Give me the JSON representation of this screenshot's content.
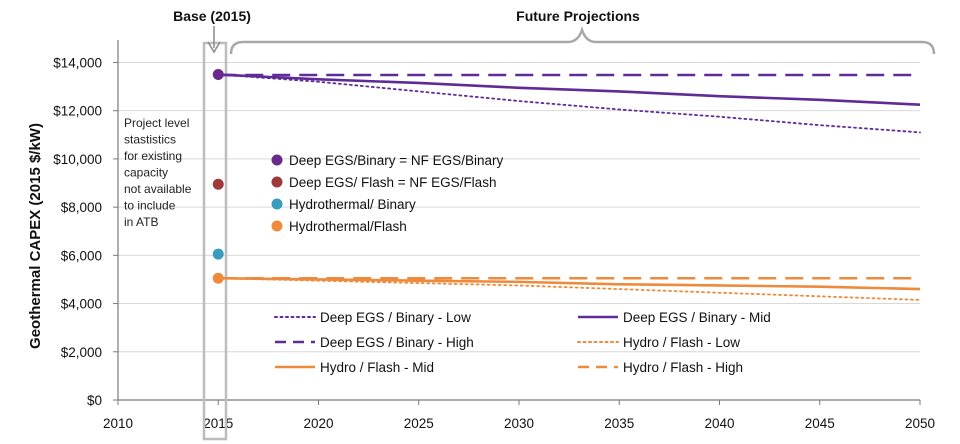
{
  "chart_data": {
    "type": "line",
    "title": "",
    "ylabel": "Geothermal CAPEX (2015 $/kW)",
    "xlabel": "",
    "xlim": [
      2010,
      2050
    ],
    "ylim": [
      0,
      14600
    ],
    "x_ticks": [
      2010,
      2015,
      2020,
      2025,
      2030,
      2035,
      2040,
      2045,
      2050
    ],
    "y_ticks": [
      0,
      2000,
      4000,
      6000,
      8000,
      10000,
      12000,
      14000
    ],
    "y_tick_labels": [
      "$0",
      "$2,000",
      "$4,000",
      "$6,000",
      "$8,000",
      "$10,000",
      "$12,000",
      "$14,000"
    ],
    "grid": "horizontal",
    "base_label": "Base (2015)",
    "future_label": "Future Projections",
    "note_lines": [
      "Project level",
      "stastistics",
      "for existing",
      "capacity",
      "not available",
      "to include",
      "in ATB"
    ],
    "base_points": [
      {
        "name": "Deep EGS/Binary = NF EGS/Binary",
        "x": 2015,
        "y": 13500,
        "color": "#6a2a8c"
      },
      {
        "name": "Deep EGS/ Flash = NF EGS/Flash",
        "x": 2015,
        "y": 8950,
        "color": "#9e3a3a"
      },
      {
        "name": "Hydrothermal/ Binary",
        "x": 2015,
        "y": 6050,
        "color": "#3a9cbc"
      },
      {
        "name": "Hydrothermal/Flash",
        "x": 2015,
        "y": 5050,
        "color": "#ee8a3c"
      }
    ],
    "series": [
      {
        "name": "Deep EGS / Binary - Low",
        "color": "#5e2b97",
        "dash": "dot",
        "x": [
          2015,
          2020,
          2025,
          2030,
          2035,
          2040,
          2045,
          2050
        ],
        "values": [
          13500,
          13200,
          12800,
          12400,
          12050,
          11750,
          11400,
          11100
        ]
      },
      {
        "name": "Deep EGS / Binary - Mid",
        "color": "#5e2b97",
        "dash": "solid",
        "x": [
          2015,
          2020,
          2025,
          2030,
          2035,
          2040,
          2045,
          2050
        ],
        "values": [
          13500,
          13300,
          13150,
          12950,
          12800,
          12600,
          12450,
          12250
        ]
      },
      {
        "name": "Deep EGS / Binary - High",
        "color": "#5e2b97",
        "dash": "dash",
        "x": [
          2015,
          2050
        ],
        "values": [
          13480,
          13480
        ]
      },
      {
        "name": "Hydro / Flash - Low",
        "color": "#ee8a3c",
        "dash": "dot",
        "x": [
          2015,
          2020,
          2025,
          2030,
          2035,
          2040,
          2045,
          2050
        ],
        "values": [
          5050,
          4950,
          4850,
          4750,
          4600,
          4450,
          4300,
          4150
        ]
      },
      {
        "name": "Hydro / Flash - Mid",
        "color": "#ee8a3c",
        "dash": "solid",
        "x": [
          2015,
          2020,
          2025,
          2030,
          2035,
          2040,
          2045,
          2050
        ],
        "values": [
          5050,
          5000,
          4950,
          4900,
          4800,
          4750,
          4700,
          4600
        ]
      },
      {
        "name": "Hydro / Flash - High",
        "color": "#ee8a3c",
        "dash": "dash",
        "x": [
          2015,
          2050
        ],
        "values": [
          5050,
          5050
        ]
      }
    ],
    "legend_placement": "bottom"
  }
}
